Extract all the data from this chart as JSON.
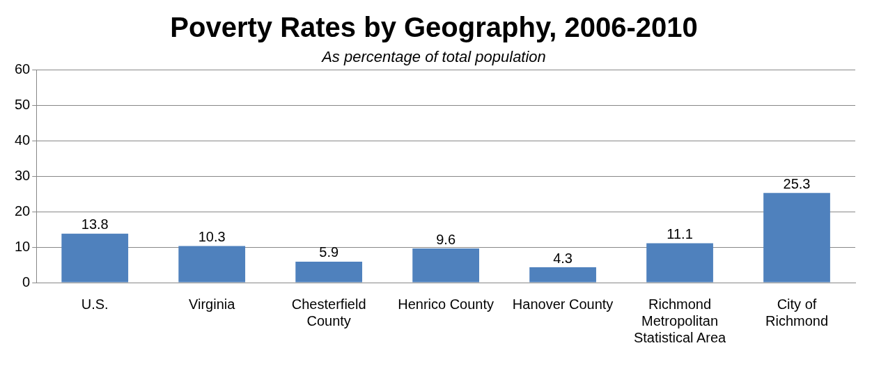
{
  "chart_data": {
    "type": "bar",
    "title": "Poverty Rates by Geography, 2006-2010",
    "subtitle": "As percentage of total population",
    "categories": [
      "U.S.",
      "Virginia",
      "Chesterfield County",
      "Henrico County",
      "Hanover County",
      "Richmond Metropolitan Statistical Area",
      "City of Richmond"
    ],
    "values": [
      13.8,
      10.3,
      5.9,
      9.6,
      4.3,
      11.1,
      25.3
    ],
    "color": "#4f81bd",
    "ylim": [
      0,
      60
    ],
    "yticks": [
      0,
      10,
      20,
      30,
      40,
      50,
      60
    ],
    "grid": "y",
    "legend": false,
    "data_labels": true
  }
}
